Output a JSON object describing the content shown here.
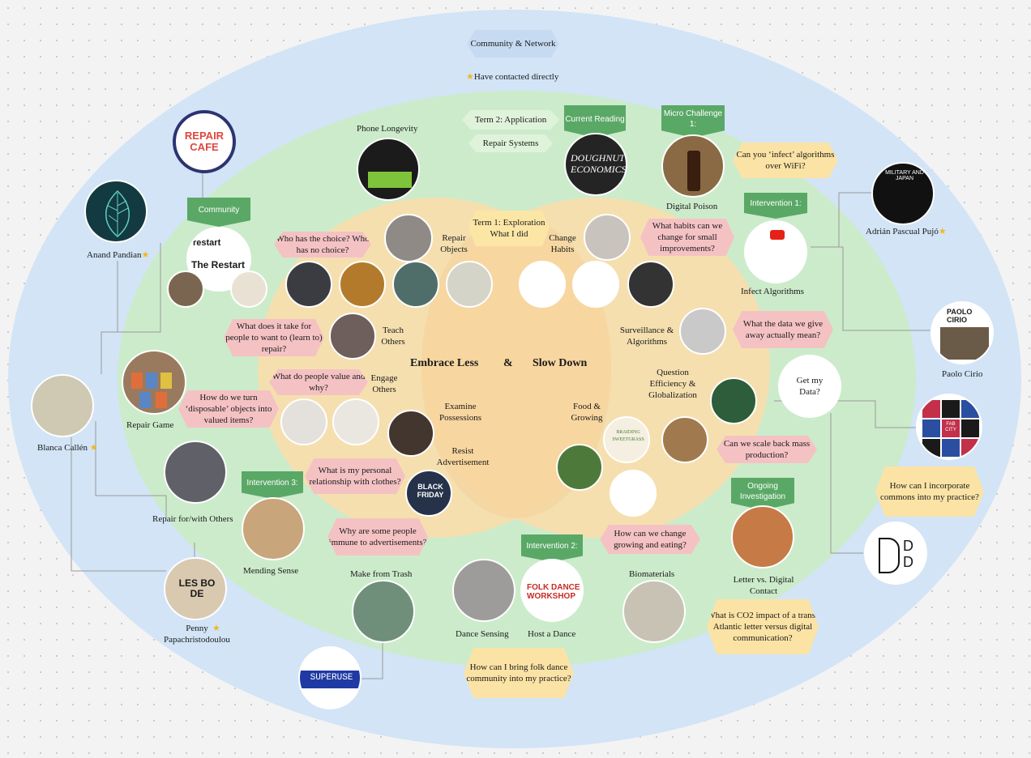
{
  "header": {
    "community_network": "Community & Network",
    "contacted": "Have contacted directly"
  },
  "center": {
    "left_theme": "Embrace Less",
    "amp": "&",
    "right_theme": "Slow Down",
    "term1": "Term 1: Exploration What I did",
    "term2_a": "Term 2: Application",
    "term2_b": "Repair Systems"
  },
  "tags": {
    "community": "Community",
    "current_reading": "Current Reading",
    "micro_challenge": "Micro Challenge 1:",
    "intervention1": "Intervention 1:",
    "intervention2": "Intervention 2:",
    "intervention3": "Intervention 3:",
    "ongoing": "Ongoing Investigation"
  },
  "labels": {
    "phone_longevity": "Phone Longevity",
    "digital_poison": "Digital Poison",
    "infect_algorithms": "Infect Algorithms",
    "repair_objects": "Repair Objects",
    "change_habits": "Change Habits",
    "teach_others": "Teach Others",
    "engage_others": "Engage Others",
    "examine_possessions": "Examine Possessions",
    "resist_advertisement": "Resist Advertisement",
    "surveillance": "Surveillance & Algorithms",
    "question_efficiency": "Question Efficiency & Globalization",
    "food_growing": "Food & Growing",
    "repair_game": "Repair Game",
    "repair_for_with": "Repair for/with Others",
    "mending_sense": "Mending Sense",
    "make_from_trash": "Make from Trash",
    "dance_sensing": "Dance Sensing",
    "host_dance": "Host a Dance",
    "biomaterials": "Biomaterials",
    "letter_vs": "Letter vs. Digital Contact",
    "anand": "Anand Pandian",
    "blanca": "Blanca Callén",
    "penny": "Penny Papachristodoulou",
    "adrian": "Adrián Pascual Pujó",
    "paolo": "Paolo Cirio",
    "get_data": "Get my Data?"
  },
  "questions": {
    "who_choice": "Who has the choice? Who has no choice?",
    "what_take": "What does it take for people to want to (learn to) repair?",
    "people_value": "What do people value and why?",
    "disposable": "How do we turn ‘disposable’ objects into valued items?",
    "relationship": "What is my personal relationship with clothes?",
    "immune": "Why are some people immune to advertisements?",
    "infect": "Can you ‘infect’ algorithms over WiFi?",
    "habits": "What habits can we change for small improvements?",
    "data_give": "What the data we give away actually mean?",
    "scale": "Can we scale back mass production?",
    "change_growing": "How can we change growing and eating?",
    "commons": "How can I incorporate commons into my practice?",
    "co2": "What is CO2 impact of a trans-Atlantic letter versus digital communication?",
    "folk": "How can I bring folk dance community into my practice?"
  },
  "logos": {
    "repair_cafe": "REPAIR CAFE",
    "restart_small": "restart",
    "restart_big": "The Restart",
    "doughnut": "DOUGHNUT ECONOMICS",
    "paolo_logo": "PAOLO CIRIO",
    "fab": "FAB CITY",
    "superuse": "SUPERUSE",
    "dd": "D D",
    "folk": "FOLK DANCE WORKSHOP",
    "black_friday": "BLACK FRIDAY",
    "braiding": "BRAIDING SWEETGRASS",
    "military": "MILITARY AND JAPAN",
    "lesbos": "LES BO DE"
  },
  "colors": {
    "outer": "#cfe2f5",
    "middle": "#cdeccf",
    "inner": "#f9e2b4",
    "tag": "#5aa866"
  }
}
